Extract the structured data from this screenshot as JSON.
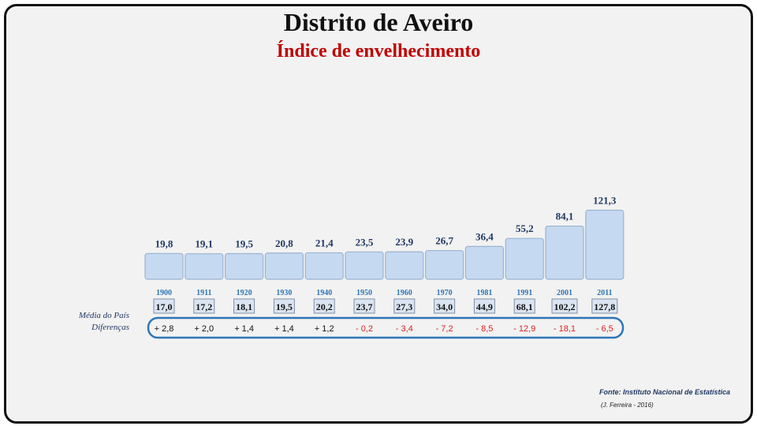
{
  "chart_data": {
    "type": "bar",
    "title": "Distrito de Aveiro",
    "subtitle": "Índice de envelhecimento",
    "categories": [
      "1900",
      "1911",
      "1920",
      "1930",
      "1940",
      "1950",
      "1960",
      "1970",
      "1981",
      "1991",
      "2001",
      "2011"
    ],
    "values": [
      19.8,
      19.1,
      19.5,
      20.8,
      21.4,
      23.5,
      23.9,
      26.7,
      36.4,
      55.2,
      84.1,
      121.3
    ],
    "value_labels": [
      "19,8",
      "19,1",
      "19,5",
      "20,8",
      "21,4",
      "23,5",
      "23,9",
      "26,7",
      "36,4",
      "55,2",
      "84,1",
      "121,3"
    ],
    "national_average_label": "Média do País",
    "national_average": [
      "17,0",
      "17,2",
      "18,1",
      "19,5",
      "20,2",
      "23,7",
      "27,3",
      "34,0",
      "44,9",
      "68,1",
      "102,2",
      "127,8"
    ],
    "differences_label": "Diferenças",
    "differences": [
      "+ 2,8",
      "+ 2,0",
      "+ 1,4",
      "+ 1,4",
      "+ 1,2",
      "- 0,2",
      "- 3,4",
      "- 7,2",
      "- 8,5",
      "- 12,9",
      "- 18,1",
      "- 6,5"
    ],
    "colors": {
      "bar_fill": "#c5d9f1",
      "bar_stroke": "#9db3cf",
      "value_label": "#1f3864",
      "year_label": "#2e75b6",
      "positive_diff": "#111111",
      "negative_diff": "#e02020",
      "oval_stroke": "#2e75b6"
    }
  },
  "footer": {
    "source": "Fonte: Instituto Nacional de Estatística",
    "author": "(J. Ferreira - 2016)"
  }
}
